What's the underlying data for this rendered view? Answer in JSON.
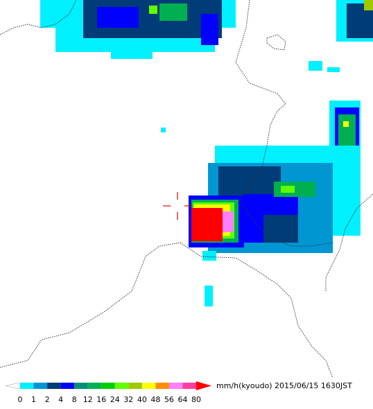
{
  "legend": {
    "unit": "mm/h(kyoudo)",
    "timestamp": "2015/06/15 1630JST",
    "ticks": [
      0,
      1,
      2,
      4,
      8,
      12,
      16,
      24,
      32,
      40,
      48,
      56,
      64,
      80
    ],
    "under_color": "#ffffff",
    "over_color": "#ff0000",
    "colors": [
      "#00f0ff",
      "#0096d2",
      "#003c78",
      "#0000ff",
      "#00907a",
      "#00b050",
      "#00d000",
      "#60ff00",
      "#a0c800",
      "#ffff00",
      "#ff8c00",
      "#ff80ff",
      "#ff3ca0"
    ]
  }
}
